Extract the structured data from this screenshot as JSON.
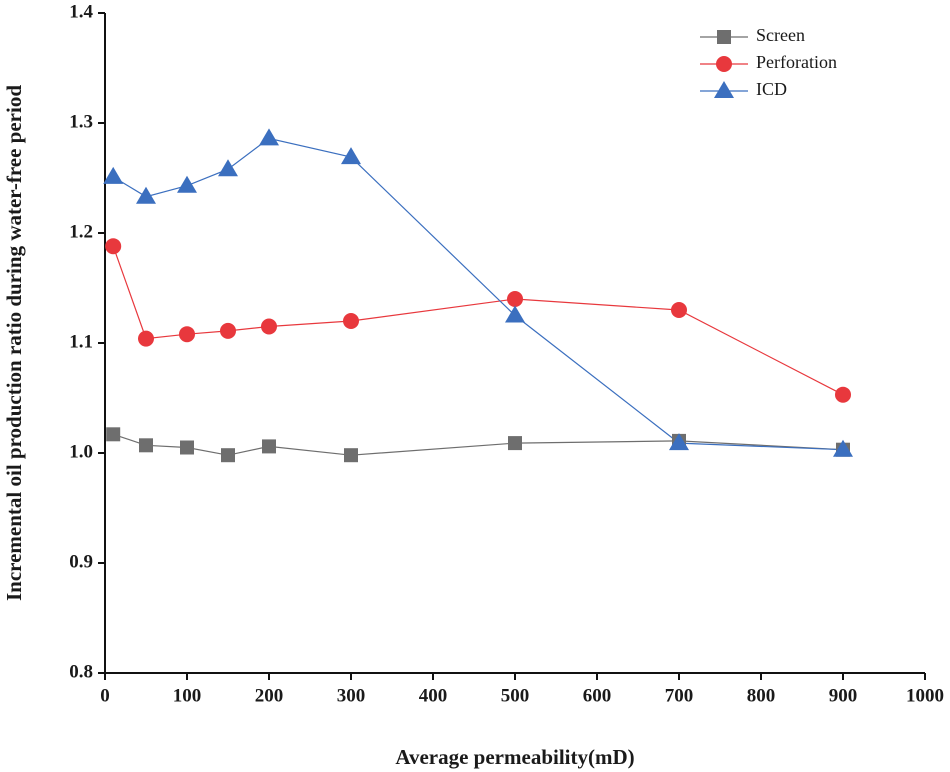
{
  "chart_data": {
    "type": "line",
    "x_label": "Average permeability(mD)",
    "y_label": "Incremental oil production ratio during water-free period",
    "x": [
      10,
      50,
      100,
      150,
      200,
      300,
      500,
      700,
      900
    ],
    "series": [
      {
        "name": "Screen",
        "color": "#6e6e6e",
        "marker": "square",
        "values": [
          1.017,
          1.007,
          1.005,
          0.998,
          1.006,
          0.998,
          1.009,
          1.011,
          1.003
        ]
      },
      {
        "name": "Perforation",
        "color": "#e8383d",
        "marker": "circle",
        "values": [
          1.188,
          1.104,
          1.108,
          1.111,
          1.115,
          1.12,
          1.14,
          1.13,
          1.053
        ]
      },
      {
        "name": "ICD",
        "color": "#3b6fbf",
        "marker": "triangle",
        "values": [
          1.251,
          1.233,
          1.243,
          1.258,
          1.286,
          1.269,
          1.125,
          1.009,
          1.003
        ]
      }
    ],
    "xlim": [
      0,
      1000
    ],
    "xticks": [
      0,
      100,
      200,
      300,
      400,
      500,
      600,
      700,
      800,
      900,
      1000
    ],
    "ylim": [
      0.8,
      1.4
    ],
    "yticks": [
      0.8,
      0.9,
      {
        "value": 1,
        "label": "1.0"
      },
      1.1,
      1.2,
      1.3,
      1.4
    ],
    "legend": "top-right",
    "grid": false
  }
}
